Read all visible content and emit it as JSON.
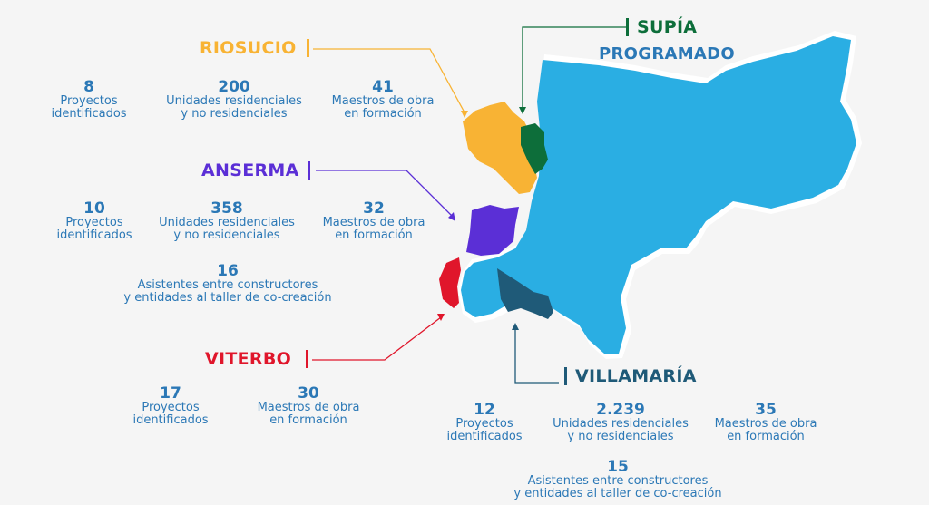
{
  "colors": {
    "riosucio": "#f8b334",
    "supia": "#0d6e3a",
    "anserma": "#5b2fd6",
    "viterbo": "#e0162b",
    "villamaria": "#1f5a78",
    "stats": "#2b78b6",
    "map_fill": "#2aaee3"
  },
  "riosucio": {
    "name": "RIOSUCIO",
    "stats": [
      {
        "num": "8",
        "l1": "Proyectos",
        "l2": "identificados"
      },
      {
        "num": "200",
        "l1": "Unidades residenciales",
        "l2": "y no residenciales"
      },
      {
        "num": "41",
        "l1": "Maestros de obra",
        "l2": "en formación"
      }
    ]
  },
  "supia": {
    "name": "SUPÍA",
    "status": "PROGRAMADO"
  },
  "anserma": {
    "name": "ANSERMA",
    "stats": [
      {
        "num": "10",
        "l1": "Proyectos",
        "l2": "identificados"
      },
      {
        "num": "358",
        "l1": "Unidades residenciales",
        "l2": "y no residenciales"
      },
      {
        "num": "32",
        "l1": "Maestros de obra",
        "l2": "en formación"
      },
      {
        "num": "16",
        "l1": "Asistentes entre constructores",
        "l2": "y entidades al taller de co-creación"
      }
    ]
  },
  "viterbo": {
    "name": "VITERBO",
    "stats": [
      {
        "num": "17",
        "l1": "Proyectos",
        "l2": "identificados"
      },
      {
        "num": "30",
        "l1": "Maestros de obra",
        "l2": "en formación"
      }
    ]
  },
  "villamaria": {
    "name": "VILLAMARÍA",
    "stats": [
      {
        "num": "12",
        "l1": "Proyectos",
        "l2": "identificados"
      },
      {
        "num": "2.239",
        "l1": "Unidades residenciales",
        "l2": "y no residenciales"
      },
      {
        "num": "35",
        "l1": "Maestros de obra",
        "l2": "en formación"
      },
      {
        "num": "15",
        "l1": "Asistentes entre constructores",
        "l2": "y entidades al taller de co-creación"
      }
    ]
  }
}
